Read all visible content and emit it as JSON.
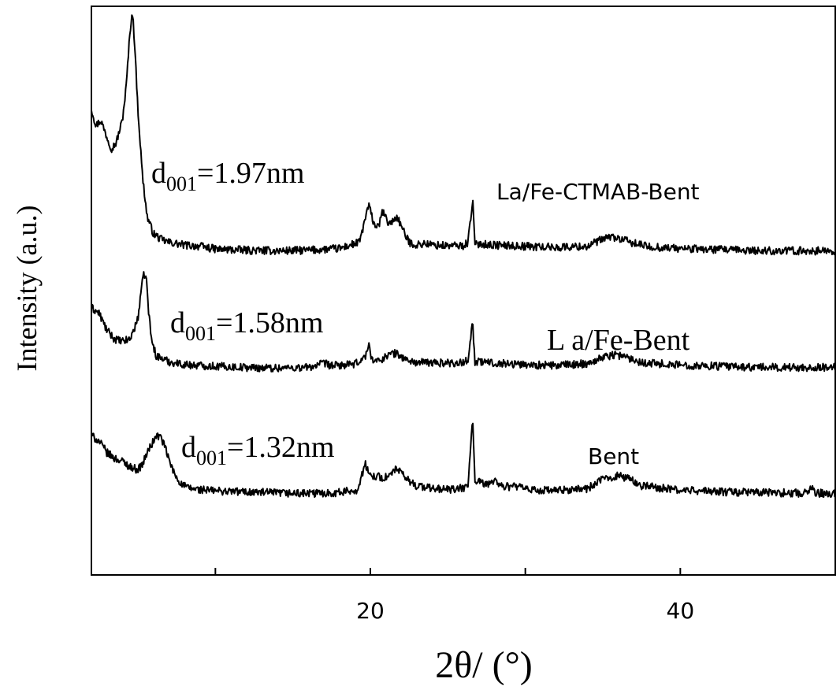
{
  "chart_data": {
    "type": "line",
    "title": "",
    "xlabel": "2θ/ (°)",
    "ylabel": "Intensity (a.u.)",
    "xlim": [
      2,
      50
    ],
    "ylim": [
      0,
      100
    ],
    "x_ticks": [
      10,
      20,
      30,
      40
    ],
    "x_tick_labels": [
      "20",
      "40"
    ],
    "grid": false,
    "legend": "none",
    "series": [
      {
        "name": "La/Fe-CTMAB-Bent",
        "annotation": "d001=1.97nm",
        "color": "#000000",
        "points": [
          [
            2.0,
            82
          ],
          [
            2.3,
            79
          ],
          [
            2.6,
            80
          ],
          [
            3.0,
            77
          ],
          [
            3.3,
            75
          ],
          [
            3.6,
            76
          ],
          [
            4.0,
            80
          ],
          [
            4.25,
            86
          ],
          [
            4.5,
            96
          ],
          [
            4.65,
            99
          ],
          [
            4.8,
            93
          ],
          [
            5.0,
            82
          ],
          [
            5.3,
            70
          ],
          [
            5.6,
            63
          ],
          [
            6.0,
            60
          ],
          [
            6.5,
            59
          ],
          [
            7.0,
            58.5
          ],
          [
            8.0,
            58
          ],
          [
            9.0,
            57.8
          ],
          [
            10.0,
            57.3
          ],
          [
            12.0,
            57.1
          ],
          [
            14.0,
            57
          ],
          [
            16.0,
            57.1
          ],
          [
            18.0,
            57.4
          ],
          [
            19.3,
            58.5
          ],
          [
            19.7,
            63
          ],
          [
            19.9,
            65
          ],
          [
            20.2,
            62
          ],
          [
            20.5,
            61
          ],
          [
            20.8,
            64
          ],
          [
            21.1,
            62
          ],
          [
            21.4,
            62
          ],
          [
            21.7,
            63
          ],
          [
            21.9,
            62
          ],
          [
            22.2,
            60
          ],
          [
            22.5,
            58.5
          ],
          [
            23.0,
            58
          ],
          [
            23.5,
            58.3
          ],
          [
            24.0,
            58
          ],
          [
            25.0,
            57.9
          ],
          [
            26.0,
            57.9
          ],
          [
            26.3,
            58.5
          ],
          [
            26.6,
            66
          ],
          [
            26.75,
            57.9
          ],
          [
            27.0,
            58.3
          ],
          [
            28.0,
            58
          ],
          [
            30.0,
            57.8
          ],
          [
            32.0,
            57.6
          ],
          [
            34.0,
            57.8
          ],
          [
            34.8,
            58.8
          ],
          [
            35.5,
            59.5
          ],
          [
            36.2,
            59
          ],
          [
            37.0,
            58.3
          ],
          [
            38.0,
            57.7
          ],
          [
            40.0,
            57.4
          ],
          [
            45.0,
            57
          ],
          [
            50.0,
            57
          ]
        ]
      },
      {
        "name": "L a/Fe-Bent",
        "annotation": "d001=1.58nm",
        "color": "#000000",
        "points": [
          [
            2.0,
            47
          ],
          [
            2.5,
            46
          ],
          [
            3.0,
            43
          ],
          [
            3.5,
            41.5
          ],
          [
            4.0,
            41
          ],
          [
            4.5,
            41.5
          ],
          [
            5.0,
            45
          ],
          [
            5.2,
            50
          ],
          [
            5.4,
            53
          ],
          [
            5.55,
            52
          ],
          [
            5.7,
            46
          ],
          [
            5.9,
            41
          ],
          [
            6.2,
            38.5
          ],
          [
            6.6,
            38
          ],
          [
            7.0,
            37.5
          ],
          [
            8.0,
            37
          ],
          [
            10.0,
            36.7
          ],
          [
            12.0,
            36.5
          ],
          [
            14.0,
            36.4
          ],
          [
            16.0,
            36.5
          ],
          [
            17.0,
            37.2
          ],
          [
            17.5,
            36.8
          ],
          [
            19.0,
            37
          ],
          [
            19.7,
            38.5
          ],
          [
            19.9,
            40.5
          ],
          [
            20.1,
            38
          ],
          [
            20.5,
            37.5
          ],
          [
            21.0,
            38.5
          ],
          [
            21.5,
            39
          ],
          [
            21.8,
            38.8
          ],
          [
            22.2,
            38
          ],
          [
            22.8,
            37.4
          ],
          [
            24.0,
            37.3
          ],
          [
            26.0,
            37.3
          ],
          [
            26.3,
            38
          ],
          [
            26.6,
            44.5
          ],
          [
            26.75,
            37.3
          ],
          [
            27.0,
            37.5
          ],
          [
            28.0,
            37.3
          ],
          [
            30.0,
            37
          ],
          [
            32.0,
            36.8
          ],
          [
            34.0,
            37.2
          ],
          [
            35.0,
            38.3
          ],
          [
            35.8,
            38.8
          ],
          [
            36.5,
            38.3
          ],
          [
            37.5,
            37.4
          ],
          [
            40.0,
            36.9
          ],
          [
            45.0,
            36.5
          ],
          [
            50.0,
            36.5
          ]
        ]
      },
      {
        "name": "Bent",
        "annotation": "d001=1.32nm",
        "color": "#000000",
        "points": [
          [
            2.0,
            24.5
          ],
          [
            2.5,
            23.5
          ],
          [
            3.0,
            21.5
          ],
          [
            3.5,
            20.5
          ],
          [
            4.0,
            20
          ],
          [
            4.5,
            19
          ],
          [
            5.0,
            18.5
          ],
          [
            5.3,
            19.5
          ],
          [
            5.6,
            21.5
          ],
          [
            5.9,
            23
          ],
          [
            6.2,
            24.5
          ],
          [
            6.5,
            24.2
          ],
          [
            6.8,
            22
          ],
          [
            7.1,
            19.5
          ],
          [
            7.4,
            17.5
          ],
          [
            7.8,
            16
          ],
          [
            8.2,
            15.3
          ],
          [
            9.0,
            15
          ],
          [
            10.0,
            14.8
          ],
          [
            12.0,
            14.6
          ],
          [
            14.0,
            14.4
          ],
          [
            16.0,
            14.3
          ],
          [
            18.0,
            14.5
          ],
          [
            19.2,
            15
          ],
          [
            19.5,
            18
          ],
          [
            19.7,
            19.5
          ],
          [
            19.9,
            17.5
          ],
          [
            20.3,
            17.5
          ],
          [
            20.8,
            17
          ],
          [
            21.3,
            17.5
          ],
          [
            21.7,
            18.8
          ],
          [
            22.0,
            17.8
          ],
          [
            22.5,
            16.5
          ],
          [
            23.0,
            15.7
          ],
          [
            24.0,
            15.2
          ],
          [
            25.5,
            15
          ],
          [
            26.3,
            15.5
          ],
          [
            26.6,
            28
          ],
          [
            26.75,
            16
          ],
          [
            27.0,
            16.3
          ],
          [
            27.5,
            15.8
          ],
          [
            28.0,
            16.8
          ],
          [
            28.5,
            15.5
          ],
          [
            29.5,
            15.6
          ],
          [
            30.0,
            15
          ],
          [
            32.0,
            14.8
          ],
          [
            34.0,
            15.2
          ],
          [
            35.0,
            16.8
          ],
          [
            36.0,
            17.5
          ],
          [
            36.8,
            16.8
          ],
          [
            37.5,
            15.7
          ],
          [
            39.0,
            15.2
          ],
          [
            40.0,
            14.9
          ],
          [
            43.0,
            14.6
          ],
          [
            45.0,
            14.5
          ],
          [
            48.0,
            14.4
          ],
          [
            48.5,
            15.5
          ],
          [
            48.7,
            14.4
          ],
          [
            50.0,
            14.3
          ]
        ]
      }
    ],
    "curve_labels": [
      "La/Fe-CTMAB-Bent",
      "L a/Fe-Bent",
      "Bent"
    ],
    "annotations": [
      {
        "d": "d",
        "sub": "001",
        "rest": "=1.97nm"
      },
      {
        "d": "d",
        "sub": "001",
        "rest": "=1.58nm"
      },
      {
        "d": "d",
        "sub": "001",
        "rest": "=1.32nm"
      }
    ]
  }
}
